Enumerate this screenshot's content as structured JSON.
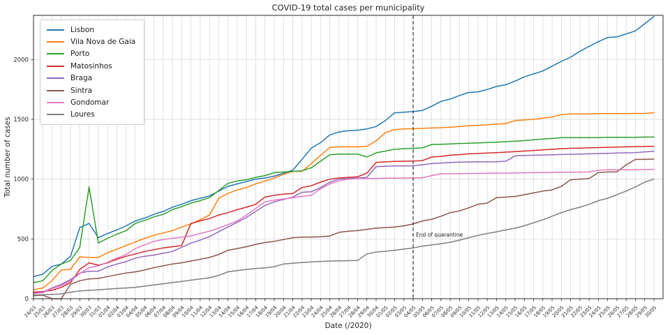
{
  "figure": {
    "title": "COVID-19 total cases per municipality",
    "xlabel": "Date (/2020)",
    "ylabel": "Total number of cases"
  },
  "chart_data": {
    "type": "line",
    "title": "COVID-19 total cases per municipality",
    "xlabel": "Date (/2020)",
    "ylabel": "Total number of cases",
    "ylim": [
      0,
      2370
    ],
    "yticks": [
      0,
      500,
      1000,
      1500,
      2000
    ],
    "grid": true,
    "legend_position": "upper left",
    "vline": {
      "x": "04/05",
      "style": "dashed",
      "color": "#333333"
    },
    "annotation": {
      "text": "End of quarantine",
      "x": "04/05",
      "y": 520
    },
    "x": [
      "24/03",
      "25/03",
      "26/03",
      "27/03",
      "28/03",
      "29/03",
      "30/03",
      "31/03",
      "01/04",
      "02/04",
      "03/04",
      "04/04",
      "05/04",
      "06/04",
      "07/04",
      "08/04",
      "09/04",
      "10/04",
      "11/04",
      "12/04",
      "13/04",
      "14/04",
      "15/04",
      "16/04",
      "17/04",
      "18/04",
      "19/04",
      "20/04",
      "21/04",
      "22/04",
      "23/04",
      "24/04",
      "25/04",
      "26/04",
      "27/04",
      "28/04",
      "29/04",
      "30/04",
      "01/05",
      "02/05",
      "03/05",
      "04/05",
      "05/05",
      "06/05",
      "07/05",
      "08/05",
      "09/05",
      "10/05",
      "11/05",
      "12/05",
      "13/05",
      "14/05",
      "15/05",
      "16/05",
      "17/05",
      "18/05",
      "19/05",
      "20/05",
      "21/05",
      "22/05",
      "23/05",
      "24/05",
      "25/05",
      "26/05",
      "27/05",
      "28/05",
      "29/05",
      "30/05"
    ],
    "series": [
      {
        "name": "Lisbon",
        "color": "#1f77b4",
        "values": [
          185,
          205,
          270,
          290,
          355,
          595,
          630,
          510,
          545,
          575,
          610,
          650,
          675,
          705,
          730,
          765,
          790,
          820,
          840,
          860,
          900,
          940,
          960,
          980,
          1000,
          1010,
          1025,
          1050,
          1075,
          1165,
          1260,
          1305,
          1370,
          1395,
          1405,
          1410,
          1420,
          1440,
          1490,
          1555,
          1560,
          1565,
          1575,
          1610,
          1650,
          1670,
          1700,
          1725,
          1730,
          1750,
          1775,
          1790,
          1820,
          1855,
          1880,
          1905,
          1945,
          1985,
          2020,
          2070,
          2110,
          2150,
          2185,
          2190,
          2215,
          2240,
          2300,
          2360
        ]
      },
      {
        "name": "Vila Nova de Gaia",
        "color": "#ff7f0e",
        "values": [
          75,
          90,
          150,
          240,
          245,
          350,
          345,
          345,
          385,
          415,
          445,
          475,
          505,
          530,
          550,
          570,
          600,
          625,
          660,
          700,
          840,
          880,
          910,
          930,
          960,
          985,
          1010,
          1040,
          1065,
          1065,
          1130,
          1200,
          1265,
          1270,
          1270,
          1270,
          1275,
          1320,
          1390,
          1415,
          1420,
          1422,
          1425,
          1428,
          1430,
          1435,
          1440,
          1447,
          1450,
          1455,
          1460,
          1465,
          1490,
          1495,
          1500,
          1510,
          1520,
          1540,
          1545,
          1545,
          1545,
          1548,
          1548,
          1548,
          1548,
          1550,
          1550,
          1555
        ]
      },
      {
        "name": "Porto",
        "color": "#2ca02c",
        "values": [
          135,
          150,
          235,
          290,
          320,
          430,
          935,
          465,
          505,
          540,
          570,
          630,
          655,
          685,
          705,
          745,
          770,
          800,
          820,
          845,
          905,
          965,
          985,
          995,
          1015,
          1030,
          1055,
          1060,
          1065,
          1070,
          1095,
          1150,
          1205,
          1210,
          1210,
          1210,
          1185,
          1220,
          1235,
          1250,
          1255,
          1258,
          1262,
          1290,
          1292,
          1295,
          1298,
          1300,
          1303,
          1306,
          1310,
          1313,
          1318,
          1322,
          1330,
          1335,
          1340,
          1347,
          1348,
          1348,
          1348,
          1348,
          1350,
          1350,
          1350,
          1350,
          1352,
          1352
        ]
      },
      {
        "name": "Matosinhos",
        "color": "#d62728",
        "values": [
          55,
          60,
          70,
          95,
          135,
          245,
          300,
          280,
          300,
          330,
          355,
          375,
          395,
          410,
          425,
          435,
          445,
          630,
          650,
          670,
          700,
          720,
          745,
          765,
          790,
          850,
          865,
          875,
          880,
          930,
          945,
          975,
          1000,
          1010,
          1015,
          1020,
          1050,
          1140,
          1145,
          1148,
          1150,
          1152,
          1155,
          1185,
          1190,
          1200,
          1205,
          1212,
          1215,
          1218,
          1222,
          1226,
          1230,
          1235,
          1240,
          1245,
          1250,
          1255,
          1258,
          1260,
          1262,
          1264,
          1266,
          1268,
          1270,
          1272,
          1274,
          1275
        ]
      },
      {
        "name": "Braga",
        "color": "#9467bd",
        "values": [
          45,
          55,
          90,
          120,
          160,
          215,
          230,
          230,
          265,
          290,
          310,
          340,
          355,
          365,
          380,
          395,
          430,
          465,
          490,
          520,
          560,
          600,
          640,
          680,
          730,
          780,
          810,
          830,
          850,
          890,
          895,
          930,
          975,
          1000,
          1005,
          1010,
          1015,
          1105,
          1108,
          1110,
          1110,
          1112,
          1120,
          1130,
          1135,
          1140,
          1142,
          1144,
          1145,
          1145,
          1146,
          1150,
          1195,
          1198,
          1200,
          1202,
          1204,
          1206,
          1208,
          1210,
          1212,
          1214,
          1216,
          1218,
          1220,
          1222,
          1228,
          1232
        ]
      },
      {
        "name": "Sintra",
        "color": "#8c564b",
        "values": [
          25,
          30,
          0,
          0,
          120,
          150,
          165,
          170,
          185,
          200,
          215,
          225,
          240,
          260,
          275,
          290,
          300,
          315,
          330,
          345,
          370,
          405,
          420,
          435,
          455,
          470,
          480,
          495,
          510,
          515,
          515,
          518,
          525,
          555,
          565,
          570,
          580,
          590,
          595,
          600,
          610,
          625,
          650,
          665,
          690,
          720,
          735,
          760,
          790,
          800,
          845,
          850,
          855,
          870,
          885,
          900,
          910,
          940,
          995,
          1000,
          1005,
          1055,
          1060,
          1060,
          1120,
          1165,
          1165,
          1168
        ]
      },
      {
        "name": "Gondomar",
        "color": "#e377c2",
        "values": [
          42,
          50,
          85,
          110,
          150,
          210,
          260,
          275,
          305,
          340,
          370,
          420,
          450,
          480,
          495,
          505,
          515,
          525,
          545,
          565,
          590,
          620,
          650,
          700,
          755,
          810,
          825,
          835,
          845,
          855,
          865,
          920,
          960,
          985,
          1000,
          1005,
          1005,
          1005,
          1008,
          1008,
          1010,
          1010,
          1012,
          1030,
          1045,
          1045,
          1046,
          1047,
          1048,
          1049,
          1050,
          1050,
          1052,
          1053,
          1054,
          1055,
          1056,
          1057,
          1058,
          1059,
          1060,
          1075,
          1078,
          1078,
          1079,
          1080,
          1080,
          1082
        ]
      },
      {
        "name": "Loures",
        "color": "#7f7f7f",
        "values": [
          30,
          33,
          36,
          40,
          55,
          65,
          70,
          75,
          80,
          85,
          90,
          95,
          105,
          115,
          125,
          135,
          145,
          155,
          165,
          175,
          195,
          225,
          235,
          245,
          252,
          258,
          268,
          290,
          297,
          303,
          308,
          312,
          315,
          317,
          318,
          320,
          375,
          390,
          397,
          405,
          415,
          425,
          440,
          450,
          460,
          472,
          490,
          510,
          530,
          545,
          560,
          575,
          590,
          610,
          635,
          660,
          690,
          720,
          745,
          765,
          790,
          820,
          840,
          870,
          900,
          935,
          975,
          1000
        ]
      }
    ]
  }
}
